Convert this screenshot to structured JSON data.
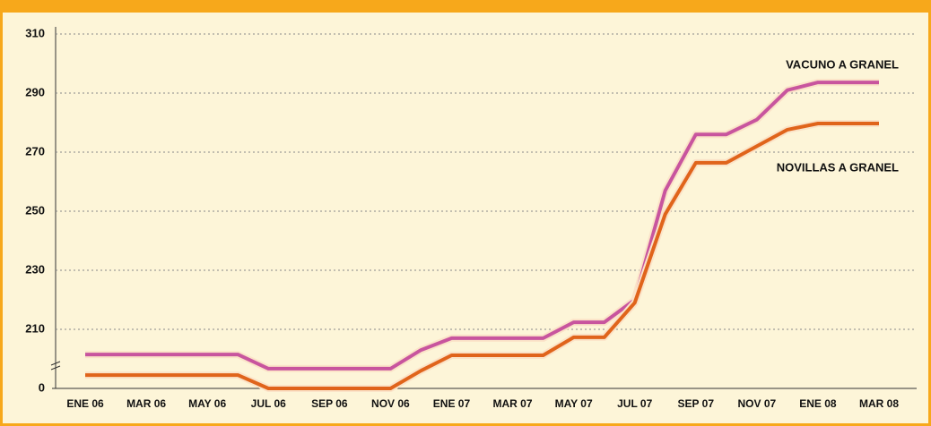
{
  "chart_data": {
    "type": "line",
    "categories": [
      "ENE 06",
      null,
      "MAR 06",
      null,
      "MAY 06",
      null,
      "JUL 06",
      null,
      "SEP 06",
      null,
      "NOV 06",
      null,
      "ENE 07",
      null,
      "MAR 07",
      null,
      "MAY 07",
      null,
      "JUL 07",
      null,
      "SEP 07",
      null,
      "NOV 07",
      null,
      "ENE 08",
      null,
      "MAR 08"
    ],
    "series": [
      {
        "name": "VACUNO A GRANEL",
        "color": "#c8559e",
        "values": [
          201.5,
          201.5,
          201.5,
          201.5,
          201.5,
          201.5,
          196.7,
          196.7,
          196.7,
          196.7,
          196.7,
          203,
          207,
          207,
          207,
          207,
          212.4,
          212.4,
          220,
          257,
          276,
          276,
          281,
          291,
          293.6,
          293.6,
          293.6
        ]
      },
      {
        "name": "NOVILLAS A GRANEL",
        "color": "#e0641b",
        "values": [
          194.5,
          194.5,
          194.5,
          194.5,
          194.5,
          194.5,
          190,
          190,
          190,
          190,
          190,
          196,
          201.2,
          201.2,
          201.2,
          201.2,
          207.3,
          207.3,
          219,
          249,
          266.4,
          266.4,
          272,
          277.6,
          279.7,
          279.7,
          279.7
        ]
      }
    ],
    "ylim": [
      190,
      310
    ],
    "yticks": [
      0,
      210,
      230,
      250,
      270,
      290,
      310
    ],
    "y_break": true,
    "grid": true
  }
}
